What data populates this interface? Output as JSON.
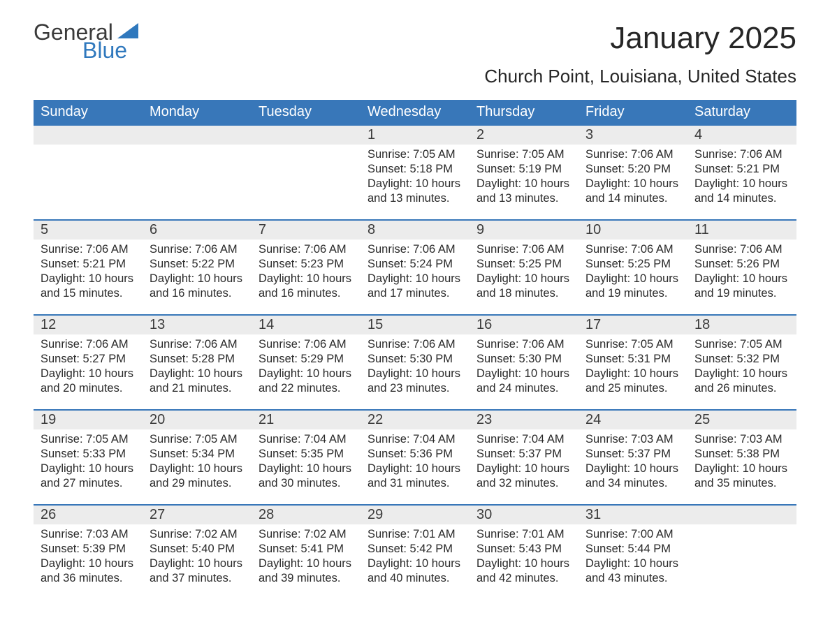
{
  "brand": {
    "word1": "General",
    "word2": "Blue",
    "accent_color": "#2f78bd",
    "text_color": "#3a3a3a"
  },
  "title": "January 2025",
  "location": "Church Point, Louisiana, United States",
  "calendar": {
    "header_bg": "#3877b9",
    "header_fg": "#ffffff",
    "daynum_bg": "#ececec",
    "daynum_border": "#3877b9",
    "columns": [
      "Sunday",
      "Monday",
      "Tuesday",
      "Wednesday",
      "Thursday",
      "Friday",
      "Saturday"
    ],
    "weeks": [
      [
        null,
        null,
        null,
        {
          "n": "1",
          "sunrise": "7:05 AM",
          "sunset": "5:18 PM",
          "daylight": "10 hours and 13 minutes."
        },
        {
          "n": "2",
          "sunrise": "7:05 AM",
          "sunset": "5:19 PM",
          "daylight": "10 hours and 13 minutes."
        },
        {
          "n": "3",
          "sunrise": "7:06 AM",
          "sunset": "5:20 PM",
          "daylight": "10 hours and 14 minutes."
        },
        {
          "n": "4",
          "sunrise": "7:06 AM",
          "sunset": "5:21 PM",
          "daylight": "10 hours and 14 minutes."
        }
      ],
      [
        {
          "n": "5",
          "sunrise": "7:06 AM",
          "sunset": "5:21 PM",
          "daylight": "10 hours and 15 minutes."
        },
        {
          "n": "6",
          "sunrise": "7:06 AM",
          "sunset": "5:22 PM",
          "daylight": "10 hours and 16 minutes."
        },
        {
          "n": "7",
          "sunrise": "7:06 AM",
          "sunset": "5:23 PM",
          "daylight": "10 hours and 16 minutes."
        },
        {
          "n": "8",
          "sunrise": "7:06 AM",
          "sunset": "5:24 PM",
          "daylight": "10 hours and 17 minutes."
        },
        {
          "n": "9",
          "sunrise": "7:06 AM",
          "sunset": "5:25 PM",
          "daylight": "10 hours and 18 minutes."
        },
        {
          "n": "10",
          "sunrise": "7:06 AM",
          "sunset": "5:25 PM",
          "daylight": "10 hours and 19 minutes."
        },
        {
          "n": "11",
          "sunrise": "7:06 AM",
          "sunset": "5:26 PM",
          "daylight": "10 hours and 19 minutes."
        }
      ],
      [
        {
          "n": "12",
          "sunrise": "7:06 AM",
          "sunset": "5:27 PM",
          "daylight": "10 hours and 20 minutes."
        },
        {
          "n": "13",
          "sunrise": "7:06 AM",
          "sunset": "5:28 PM",
          "daylight": "10 hours and 21 minutes."
        },
        {
          "n": "14",
          "sunrise": "7:06 AM",
          "sunset": "5:29 PM",
          "daylight": "10 hours and 22 minutes."
        },
        {
          "n": "15",
          "sunrise": "7:06 AM",
          "sunset": "5:30 PM",
          "daylight": "10 hours and 23 minutes."
        },
        {
          "n": "16",
          "sunrise": "7:06 AM",
          "sunset": "5:30 PM",
          "daylight": "10 hours and 24 minutes."
        },
        {
          "n": "17",
          "sunrise": "7:05 AM",
          "sunset": "5:31 PM",
          "daylight": "10 hours and 25 minutes."
        },
        {
          "n": "18",
          "sunrise": "7:05 AM",
          "sunset": "5:32 PM",
          "daylight": "10 hours and 26 minutes."
        }
      ],
      [
        {
          "n": "19",
          "sunrise": "7:05 AM",
          "sunset": "5:33 PM",
          "daylight": "10 hours and 27 minutes."
        },
        {
          "n": "20",
          "sunrise": "7:05 AM",
          "sunset": "5:34 PM",
          "daylight": "10 hours and 29 minutes."
        },
        {
          "n": "21",
          "sunrise": "7:04 AM",
          "sunset": "5:35 PM",
          "daylight": "10 hours and 30 minutes."
        },
        {
          "n": "22",
          "sunrise": "7:04 AM",
          "sunset": "5:36 PM",
          "daylight": "10 hours and 31 minutes."
        },
        {
          "n": "23",
          "sunrise": "7:04 AM",
          "sunset": "5:37 PM",
          "daylight": "10 hours and 32 minutes."
        },
        {
          "n": "24",
          "sunrise": "7:03 AM",
          "sunset": "5:37 PM",
          "daylight": "10 hours and 34 minutes."
        },
        {
          "n": "25",
          "sunrise": "7:03 AM",
          "sunset": "5:38 PM",
          "daylight": "10 hours and 35 minutes."
        }
      ],
      [
        {
          "n": "26",
          "sunrise": "7:03 AM",
          "sunset": "5:39 PM",
          "daylight": "10 hours and 36 minutes."
        },
        {
          "n": "27",
          "sunrise": "7:02 AM",
          "sunset": "5:40 PM",
          "daylight": "10 hours and 37 minutes."
        },
        {
          "n": "28",
          "sunrise": "7:02 AM",
          "sunset": "5:41 PM",
          "daylight": "10 hours and 39 minutes."
        },
        {
          "n": "29",
          "sunrise": "7:01 AM",
          "sunset": "5:42 PM",
          "daylight": "10 hours and 40 minutes."
        },
        {
          "n": "30",
          "sunrise": "7:01 AM",
          "sunset": "5:43 PM",
          "daylight": "10 hours and 42 minutes."
        },
        {
          "n": "31",
          "sunrise": "7:00 AM",
          "sunset": "5:44 PM",
          "daylight": "10 hours and 43 minutes."
        },
        null
      ]
    ],
    "labels": {
      "sunrise": "Sunrise:",
      "sunset": "Sunset:",
      "daylight": "Daylight:"
    }
  }
}
